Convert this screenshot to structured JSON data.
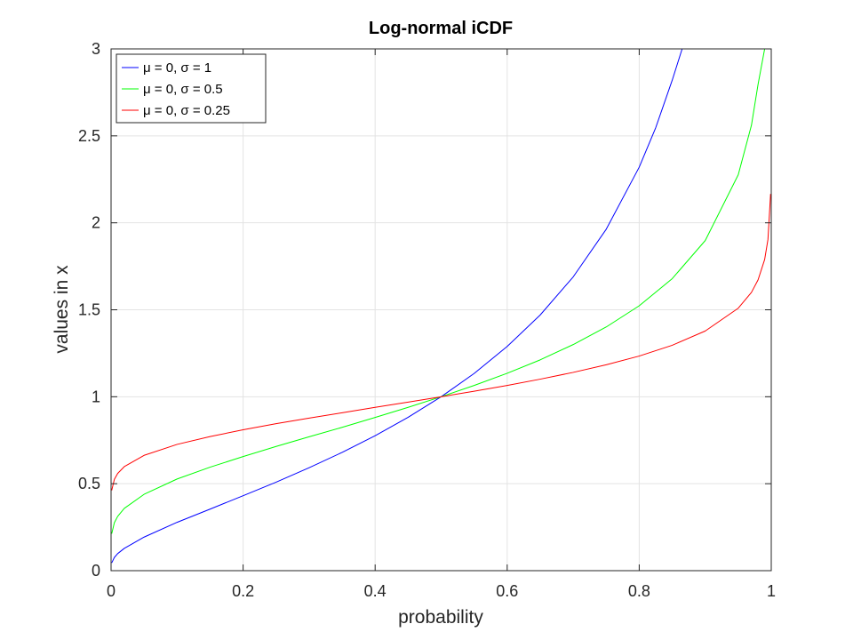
{
  "chart_data": {
    "type": "line",
    "title": "Log-normal iCDF",
    "xlabel": "probability",
    "ylabel": "values in x",
    "xlim": [
      0,
      1
    ],
    "ylim": [
      0,
      3
    ],
    "xticks": [
      0,
      0.2,
      0.4,
      0.6,
      0.8,
      1
    ],
    "xtick_labels": [
      "0",
      "0.2",
      "0.4",
      "0.6",
      "0.8",
      "1"
    ],
    "yticks": [
      0,
      0.5,
      1,
      1.5,
      2,
      2.5,
      3
    ],
    "ytick_labels": [
      "0",
      "0.5",
      "1",
      "1.5",
      "2",
      "2.5",
      "3"
    ],
    "grid": true,
    "legend_position": "top-left",
    "series": [
      {
        "name": "μ = 0, σ = 1",
        "color": "#0000ff",
        "x": [
          0.001,
          0.005,
          0.01,
          0.02,
          0.05,
          0.1,
          0.15,
          0.2,
          0.25,
          0.3,
          0.35,
          0.4,
          0.45,
          0.5,
          0.55,
          0.6,
          0.65,
          0.7,
          0.75,
          0.8,
          0.825,
          0.85,
          0.865
        ],
        "y": [
          0.045,
          0.076,
          0.098,
          0.128,
          0.193,
          0.278,
          0.354,
          0.431,
          0.509,
          0.592,
          0.68,
          0.776,
          0.882,
          1.0,
          1.134,
          1.289,
          1.47,
          1.689,
          1.963,
          2.32,
          2.547,
          2.82,
          3.0
        ]
      },
      {
        "name": "μ = 0, σ = 0.5",
        "color": "#00ff00",
        "x": [
          0.001,
          0.005,
          0.01,
          0.02,
          0.05,
          0.1,
          0.15,
          0.2,
          0.25,
          0.3,
          0.35,
          0.4,
          0.45,
          0.5,
          0.55,
          0.6,
          0.65,
          0.7,
          0.75,
          0.8,
          0.85,
          0.9,
          0.95,
          0.97,
          0.98,
          0.99
        ],
        "y": [
          0.213,
          0.276,
          0.312,
          0.358,
          0.439,
          0.527,
          0.595,
          0.656,
          0.714,
          0.77,
          0.824,
          0.881,
          0.939,
          1.0,
          1.065,
          1.135,
          1.212,
          1.3,
          1.401,
          1.523,
          1.679,
          1.898,
          2.276,
          2.561,
          2.796,
          3.0
        ]
      },
      {
        "name": "μ = 0, σ = 0.25",
        "color": "#ff0000",
        "x": [
          0.001,
          0.005,
          0.01,
          0.02,
          0.05,
          0.1,
          0.15,
          0.2,
          0.25,
          0.3,
          0.35,
          0.4,
          0.45,
          0.5,
          0.55,
          0.6,
          0.65,
          0.7,
          0.75,
          0.8,
          0.85,
          0.9,
          0.95,
          0.97,
          0.98,
          0.99,
          0.995,
          0.999
        ],
        "y": [
          0.462,
          0.525,
          0.559,
          0.598,
          0.663,
          0.726,
          0.771,
          0.81,
          0.845,
          0.877,
          0.908,
          0.939,
          0.969,
          1.0,
          1.032,
          1.065,
          1.101,
          1.14,
          1.184,
          1.234,
          1.296,
          1.378,
          1.509,
          1.6,
          1.672,
          1.789,
          1.904,
          2.166
        ]
      }
    ]
  }
}
